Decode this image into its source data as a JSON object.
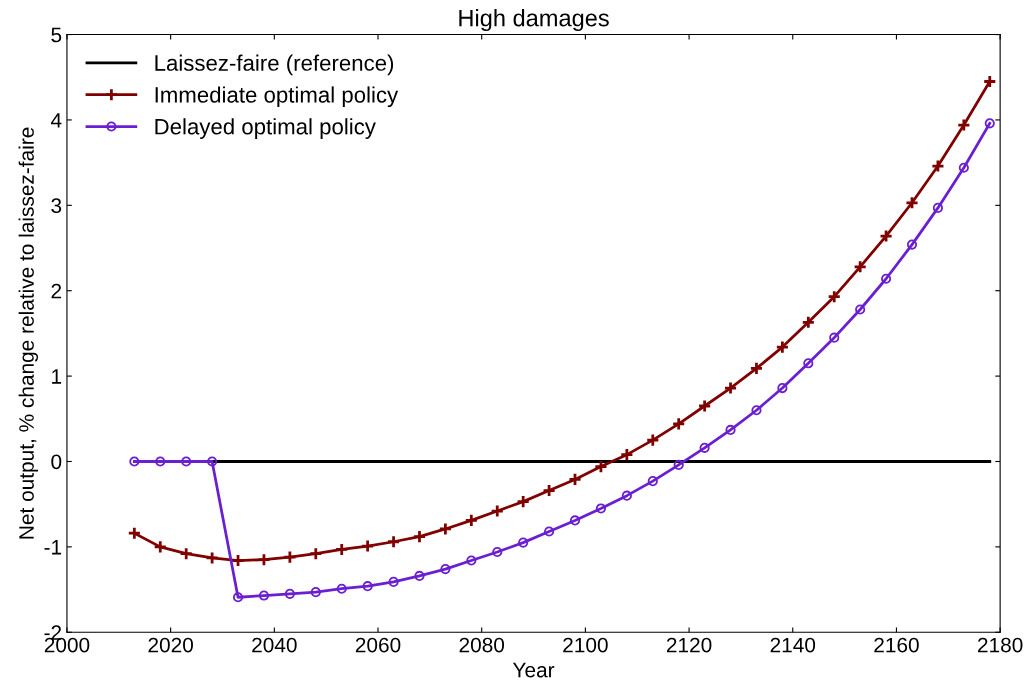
{
  "chart_data": {
    "type": "line",
    "title": "High damages",
    "xlabel": "Year",
    "ylabel": "Net output, % change relative to laissez-faire",
    "xlim": [
      2000,
      2180
    ],
    "xticks": [
      2000,
      2020,
      2040,
      2060,
      2080,
      2100,
      2120,
      2140,
      2160,
      2180
    ],
    "ylim": [
      -2,
      5
    ],
    "yticks": [
      -2,
      -1,
      0,
      1,
      2,
      3,
      4,
      5
    ],
    "grid": false,
    "legend": "top left",
    "series": [
      {
        "name": "Laissez-faire (reference)",
        "color": "#000000",
        "marker": "none",
        "x": [
          2013,
          2178
        ],
        "values": [
          0,
          0
        ]
      },
      {
        "name": "Immediate optimal policy",
        "color": "#800000",
        "marker": "cross",
        "x": [
          2013,
          2018,
          2023,
          2028,
          2033,
          2038,
          2043,
          2048,
          2053,
          2058,
          2063,
          2068,
          2073,
          2078,
          2083,
          2088,
          2093,
          2098,
          2103,
          2108,
          2113,
          2118,
          2123,
          2128,
          2133,
          2138,
          2143,
          2148,
          2153,
          2158,
          2163,
          2168,
          2173,
          2178
        ],
        "values": [
          -0.84,
          -1.0,
          -1.08,
          -1.13,
          -1.16,
          -1.15,
          -1.12,
          -1.08,
          -1.03,
          -0.99,
          -0.94,
          -0.88,
          -0.79,
          -0.69,
          -0.58,
          -0.47,
          -0.34,
          -0.21,
          -0.06,
          0.08,
          0.25,
          0.44,
          0.65,
          0.86,
          1.09,
          1.34,
          1.63,
          1.93,
          2.28,
          2.64,
          3.03,
          3.46,
          3.94,
          4.45
        ]
      },
      {
        "name": "Delayed optimal policy",
        "color": "#6a1fd0",
        "marker": "circle",
        "x": [
          2013,
          2018,
          2023,
          2028,
          2033,
          2038,
          2043,
          2048,
          2053,
          2058,
          2063,
          2068,
          2073,
          2078,
          2083,
          2088,
          2093,
          2098,
          2103,
          2108,
          2113,
          2118,
          2123,
          2128,
          2133,
          2138,
          2143,
          2148,
          2153,
          2158,
          2163,
          2168,
          2173,
          2178
        ],
        "values": [
          0,
          0,
          0,
          0,
          -1.59,
          -1.57,
          -1.55,
          -1.53,
          -1.49,
          -1.46,
          -1.41,
          -1.34,
          -1.26,
          -1.16,
          -1.06,
          -0.95,
          -0.82,
          -0.69,
          -0.55,
          -0.4,
          -0.23,
          -0.04,
          0.16,
          0.37,
          0.6,
          0.86,
          1.15,
          1.45,
          1.78,
          2.14,
          2.54,
          2.97,
          3.44,
          3.96
        ]
      }
    ]
  }
}
